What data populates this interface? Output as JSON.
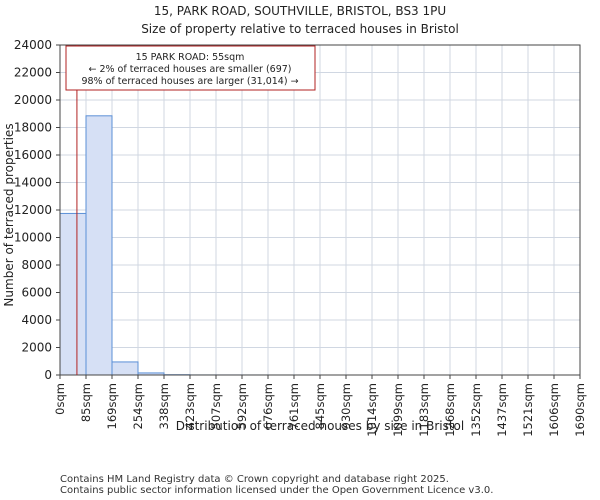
{
  "header": {
    "title": "15, PARK ROAD, SOUTHVILLE, BRISTOL, BS3 1PU",
    "subtitle": "Size of property relative to terraced houses in Bristol"
  },
  "chart_data": {
    "type": "bar",
    "xlabel": "Distribution of terraced houses by size in Bristol",
    "ylabel": "Number of terraced properties",
    "ylim": [
      0,
      24000
    ],
    "y_ticks": [
      "0",
      "2000",
      "4000",
      "6000",
      "8000",
      "10000",
      "12000",
      "14000",
      "16000",
      "18000",
      "20000",
      "22000",
      "24000"
    ],
    "y_tick_values": [
      0,
      2000,
      4000,
      6000,
      8000,
      10000,
      12000,
      14000,
      16000,
      18000,
      20000,
      22000,
      24000
    ],
    "x_tick_labels": [
      "0sqm",
      "85sqm",
      "169sqm",
      "254sqm",
      "338sqm",
      "423sqm",
      "507sqm",
      "592sqm",
      "676sqm",
      "761sqm",
      "845sqm",
      "930sqm",
      "1014sqm",
      "1099sqm",
      "1183sqm",
      "1268sqm",
      "1352sqm",
      "1437sqm",
      "1521sqm",
      "1606sqm",
      "1690sqm"
    ],
    "values": [
      11750,
      18850,
      950,
      150,
      20,
      5,
      3,
      2,
      1,
      1,
      0,
      0,
      0,
      0,
      0,
      0,
      0,
      0,
      0,
      0
    ],
    "bar_color": "#d6e0f5",
    "bar_edge_color": "#5b8fd6",
    "grid": true,
    "marker": {
      "value_sqm": 55,
      "color": "#b22222"
    },
    "annotation": {
      "line1": "15 PARK ROAD: 55sqm",
      "line2": "← 2% of terraced houses are smaller (697)",
      "line3": "98% of terraced houses are larger (31,014) →"
    }
  },
  "footer": {
    "line1": "Contains HM Land Registry data © Crown copyright and database right 2025.",
    "line2": "Contains public sector information licensed under the Open Government Licence v3.0."
  }
}
